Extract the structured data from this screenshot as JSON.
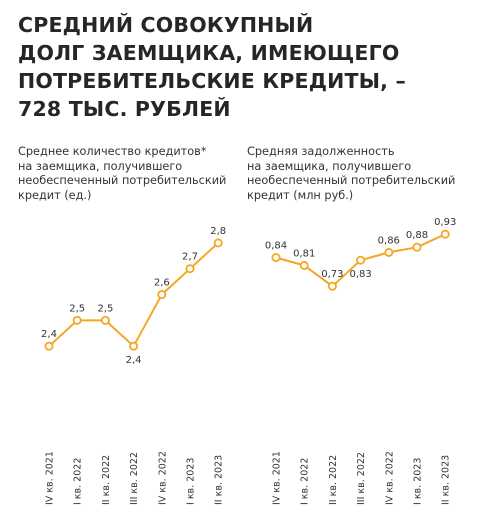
{
  "title": {
    "lines": [
      "СРЕДНИЙ СОВОКУПНЫЙ",
      "ДОЛГ ЗАЕМЩИКА, ИМЕЮЩЕГО",
      "ПОТРЕБИТЕЛЬСКИЕ КРЕДИТЫ, –",
      "728 ТЫС. РУБЛЕЙ"
    ]
  },
  "colors": {
    "line": "#f5a623",
    "marker_fill": "#ffffff",
    "text": "#2b2b2b"
  },
  "chart_data": [
    {
      "type": "line",
      "title": "Среднее количество кредитов* на заемщика, получившего необеспеченный потребительский кредит (ед.)",
      "caption_lines": [
        "Среднее количество кредитов*",
        "на заемщика, получившего",
        "необеспеченный потребительский",
        "кредит (ед.)"
      ],
      "categories": [
        "IV кв. 2021",
        "I кв. 2022",
        "II кв. 2022",
        "III кв. 2022",
        "IV кв. 2022",
        "I кв. 2023",
        "II кв. 2023"
      ],
      "values": [
        2.45,
        2.55,
        2.55,
        2.45,
        2.65,
        2.75,
        2.85
      ],
      "value_labels": [
        "2,4",
        "2,5",
        "2,5",
        "2,4",
        "2,6",
        "2,7",
        "2,8"
      ],
      "label_positions": [
        "above",
        "above",
        "above",
        "below",
        "above",
        "above",
        "above"
      ],
      "ylim": [
        2.35,
        2.9
      ],
      "grid": false
    },
    {
      "type": "line",
      "title": "Средняя задолженность на заемщика, получившего необеспеченный потребительский кредит (млн руб.)",
      "caption_lines": [
        "Средняя задолженность",
        "на заемщика, получившего",
        "необеспеченный потребительский",
        "кредит (млн руб.)"
      ],
      "categories": [
        "IV кв. 2021",
        "I кв. 2022",
        "II кв. 2022",
        "III кв. 2022",
        "IV кв. 2022",
        "I кв. 2023",
        "II кв. 2023"
      ],
      "values": [
        0.84,
        0.81,
        0.73,
        0.83,
        0.86,
        0.88,
        0.93
      ],
      "value_labels": [
        "0,84",
        "0,81",
        "0,73",
        "0,83",
        "0,86",
        "0,88",
        "0,93"
      ],
      "label_positions": [
        "above",
        "above",
        "above",
        "below",
        "above",
        "above",
        "above"
      ],
      "ylim": [
        0.6,
        1.1
      ],
      "grid": false
    }
  ]
}
